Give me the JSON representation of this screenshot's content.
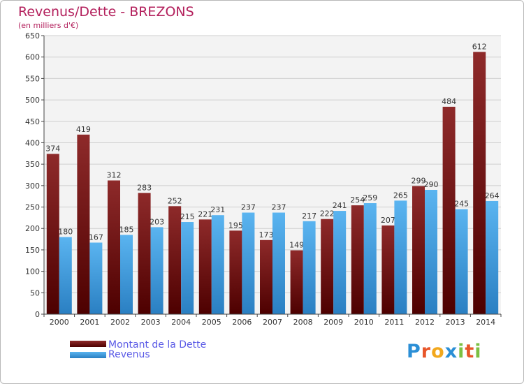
{
  "chart_data": {
    "type": "bar",
    "title": "Revenus/Dette - BREZONS",
    "subtitle": "(en milliers d'€)",
    "categories": [
      "2000",
      "2001",
      "2002",
      "2003",
      "2004",
      "2005",
      "2006",
      "2007",
      "2008",
      "2009",
      "2010",
      "2011",
      "2012",
      "2013",
      "2014"
    ],
    "series": [
      {
        "name": "Montant de la Dette",
        "values": [
          374,
          419,
          312,
          283,
          252,
          221,
          195,
          173,
          149,
          222,
          254,
          207,
          299,
          484,
          612
        ],
        "color": "#7a1a1a"
      },
      {
        "name": "Revenus",
        "values": [
          180,
          167,
          185,
          203,
          215,
          231,
          237,
          237,
          217,
          241,
          259,
          265,
          290,
          245,
          264
        ],
        "color": "#4aa3e4"
      }
    ],
    "value_labels": [
      [
        "374",
        "419",
        "312",
        "283",
        "252",
        "221",
        "195",
        "173",
        "149",
        "222",
        "254",
        "207",
        "299",
        "484",
        "612"
      ],
      [
        "180",
        "167",
        "185",
        "203",
        "215",
        "231",
        "237",
        "237",
        "217",
        "241",
        "259",
        "265",
        "290",
        "245",
        "264"
      ]
    ],
    "yticks": [
      "0",
      "50",
      "100",
      "150",
      "200",
      "250",
      "300",
      "350",
      "400",
      "450",
      "500",
      "550",
      "600",
      "650"
    ],
    "ylim": [
      0,
      650
    ],
    "grid": true,
    "legend_position": "bottom-left"
  },
  "brand": {
    "letters": [
      "P",
      "r",
      "o",
      "x",
      "i",
      "t",
      "i"
    ],
    "colors": [
      "#2b8fd6",
      "#e8562a",
      "#f2a81d",
      "#2b8fd6",
      "#7cc043",
      "#e8562a",
      "#7cc043"
    ]
  }
}
